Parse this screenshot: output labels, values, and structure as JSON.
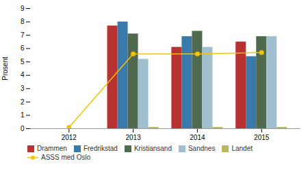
{
  "chart_data": {
    "type": "bar",
    "categories": [
      "2012",
      "2013",
      "2014",
      "2015"
    ],
    "series": [
      {
        "name": "Drammen",
        "color": "#b83232",
        "values": [
          0.0,
          7.7,
          6.1,
          6.5
        ]
      },
      {
        "name": "Fredrikstad",
        "color": "#3a7aaa",
        "values": [
          0.0,
          8.0,
          6.9,
          5.4
        ]
      },
      {
        "name": "Kristiansand",
        "color": "#506a50",
        "values": [
          0.0,
          7.1,
          7.3,
          6.9
        ]
      },
      {
        "name": "Sandnes",
        "color": "#a0c0d0",
        "values": [
          0.0,
          5.2,
          6.1,
          6.9
        ]
      },
      {
        "name": "Landet",
        "color": "#b8b860",
        "values": [
          0.0,
          0.1,
          0.1,
          0.1
        ]
      },
      {
        "name": "ASSS med Oslo",
        "type": "line",
        "color": "#f5c400",
        "marker": "circle",
        "values": [
          0.1,
          5.6,
          5.6,
          5.7
        ]
      }
    ],
    "ylabel": "Prosent",
    "ylim": [
      0,
      9
    ],
    "yticks": [
      0,
      1,
      2,
      3,
      4,
      5,
      6,
      7,
      8,
      9
    ],
    "grid": false,
    "legend": "bottom"
  }
}
